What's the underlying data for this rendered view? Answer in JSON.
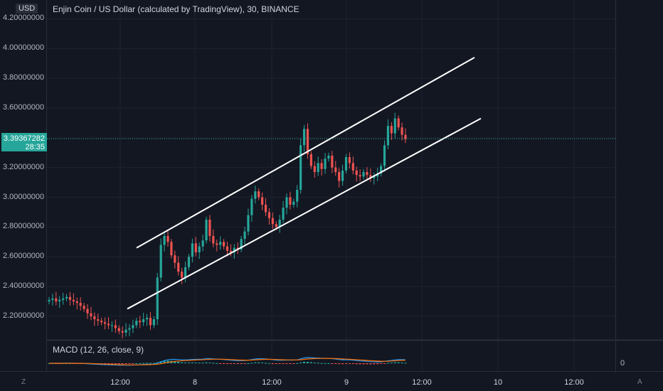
{
  "header": {
    "currency": "USD",
    "title": "Enjin Coin / US Dollar (calculated by TradingView), 30, BINANCE"
  },
  "price_scale": {
    "ticks": [
      "4.20000000",
      "4.00000000",
      "3.80000000",
      "3.60000000",
      "3.40000000",
      "3.20000000",
      "3.00000000",
      "2.80000000",
      "2.60000000",
      "2.40000000",
      "2.20000000"
    ],
    "current_price": "3.39367282",
    "countdown": "28:35"
  },
  "indicator": {
    "label": "MACD (12, 26, close, 9)",
    "zero_label": "0"
  },
  "time_axis": {
    "ticks": [
      "12:00",
      "8",
      "12:00",
      "9",
      "12:00",
      "10",
      "12:00"
    ]
  },
  "controls": {
    "left_button": "Z",
    "right_button": "A"
  },
  "colors": {
    "background": "#131722",
    "up": "#26a69a",
    "down": "#ef5350",
    "channel": "#ffffff",
    "macd_line": "#2196f3",
    "signal_line": "#ff6d00"
  },
  "chart_data": {
    "type": "candlestick",
    "ylim": [
      2.08,
      4.25
    ],
    "price_ticks": [
      2.2,
      2.4,
      2.6,
      2.8,
      3.0,
      3.2,
      3.4,
      3.6,
      3.8,
      4.0,
      4.2
    ],
    "current_price": 3.39367282,
    "channel_lines": [
      {
        "name": "upper",
        "points": [
          [
            "7 ~13:00",
            2.66
          ],
          [
            "9 ~20:00",
            3.94
          ]
        ]
      },
      {
        "name": "lower",
        "points": [
          [
            "7 ~12:00",
            2.25
          ],
          [
            "9 ~20:00",
            3.53
          ]
        ]
      }
    ],
    "closes_approx": [
      2.31,
      2.32,
      2.3,
      2.31,
      2.32,
      2.33,
      2.31,
      2.3,
      2.29,
      2.27,
      2.25,
      2.22,
      2.2,
      2.18,
      2.17,
      2.16,
      2.15,
      2.14,
      2.14,
      2.12,
      2.1,
      2.09,
      2.11,
      2.12,
      2.14,
      2.17,
      2.16,
      2.18,
      2.19,
      2.14,
      2.18,
      2.46,
      2.68,
      2.74,
      2.7,
      2.61,
      2.56,
      2.5,
      2.46,
      2.53,
      2.6,
      2.69,
      2.63,
      2.67,
      2.71,
      2.85,
      2.74,
      2.69,
      2.68,
      2.7,
      2.67,
      2.64,
      2.63,
      2.66,
      2.65,
      2.72,
      2.77,
      2.88,
      2.99,
      3.04,
      3.0,
      2.95,
      2.9,
      2.86,
      2.82,
      2.8,
      2.85,
      2.93,
      3.0,
      2.95,
      2.97,
      3.05,
      3.35,
      3.46,
      3.29,
      3.21,
      3.17,
      3.23,
      3.19,
      3.26,
      3.28,
      3.2,
      3.17,
      3.11,
      3.18,
      3.27,
      3.23,
      3.18,
      3.15,
      3.14,
      3.17,
      3.15,
      3.13,
      3.14,
      3.16,
      3.21,
      3.35,
      3.48,
      3.43,
      3.53,
      3.47,
      3.42,
      3.39
    ]
  }
}
